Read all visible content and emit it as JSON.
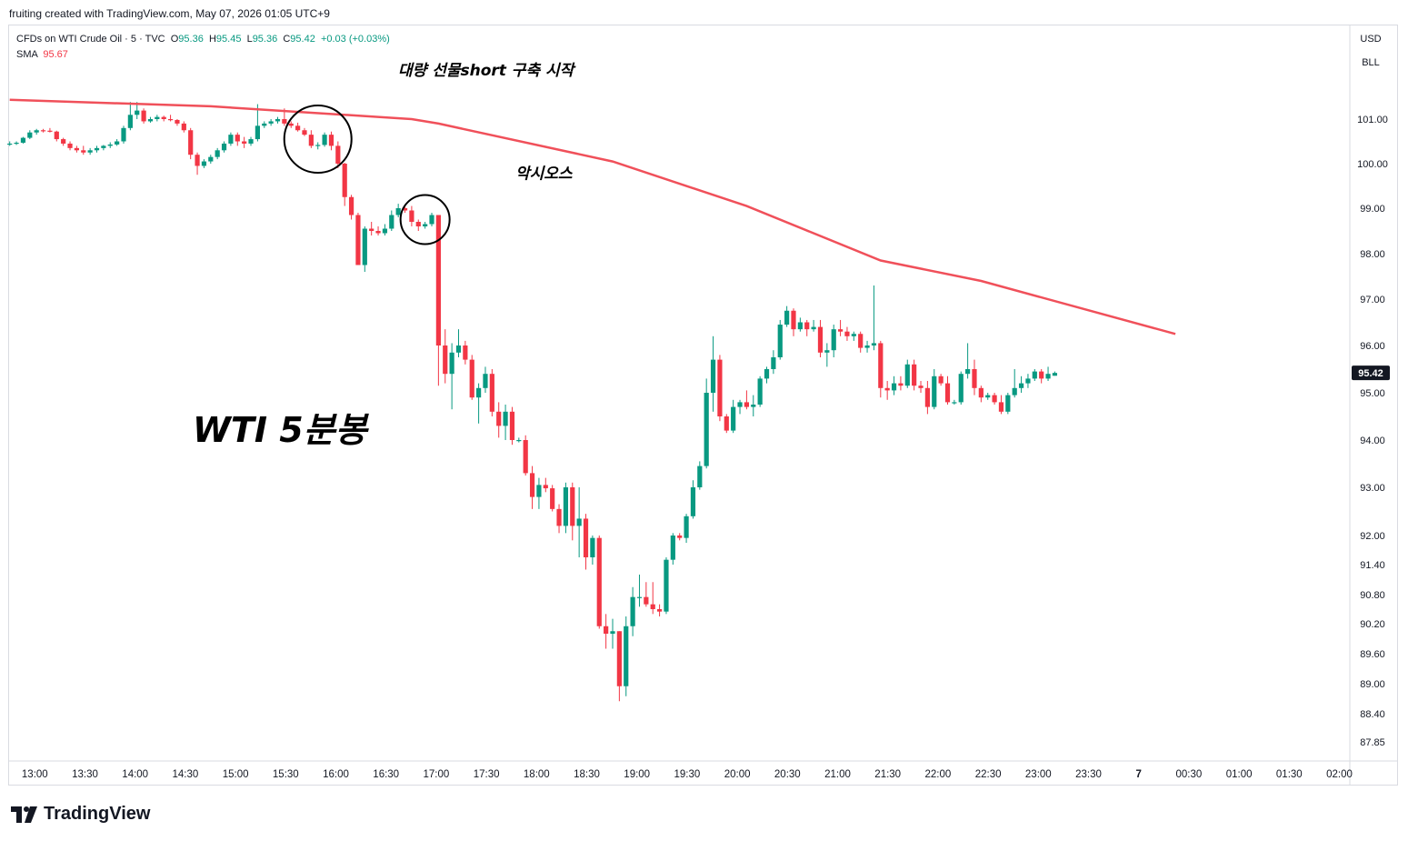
{
  "header": {
    "credit": "fruiting created with TradingView.com, May 07, 2026 01:05 UTC+9"
  },
  "legend": {
    "symbol": "CFDs on WTI Crude Oil · 5 · TVC",
    "o_label": "O",
    "o": "95.36",
    "h_label": "H",
    "h": "95.45",
    "l_label": "L",
    "l": "95.36",
    "c_label": "C",
    "c": "95.42",
    "change": "+0.03 (+0.03%)",
    "sma_label": "SMA",
    "sma": "95.67"
  },
  "currency": {
    "usd": "USD",
    "unit": "BLL"
  },
  "footer": {
    "logo_icon": "tradingview-logo-icon",
    "logo_text": "TradingView"
  },
  "colors": {
    "up": "#089981",
    "down": "#f23645",
    "sma": "#f0505a",
    "annotation": "#000000"
  },
  "chart_data": {
    "type": "candlestick",
    "y_axis_ticks": [
      101.0,
      100.0,
      99.0,
      98.0,
      97.0,
      96.0,
      95.0,
      94.0,
      93.0,
      92.0,
      91.4,
      90.8,
      90.2,
      89.6,
      89.0,
      88.4,
      87.85
    ],
    "y_axis_labels": [
      "101.00",
      "100.00",
      "99.00",
      "98.00",
      "97.00",
      "96.00",
      "95.00",
      "94.00",
      "93.00",
      "92.00",
      "91.40",
      "90.80",
      "90.20",
      "89.60",
      "89.00",
      "88.40",
      "87.85"
    ],
    "x_axis_labels": [
      "13:00",
      "13:30",
      "14:00",
      "14:30",
      "15:00",
      "15:30",
      "16:00",
      "16:30",
      "17:00",
      "17:30",
      "18:00",
      "18:30",
      "19:00",
      "19:30",
      "20:00",
      "20:30",
      "21:00",
      "21:30",
      "22:00",
      "22:30",
      "23:00",
      "23:30",
      "7",
      "00:30",
      "01:00",
      "01:30",
      "02:00"
    ],
    "last_price": "95.42",
    "candles": [
      [
        100.45,
        100.5,
        100.4,
        100.45
      ],
      [
        100.45,
        100.5,
        100.42,
        100.47
      ],
      [
        100.47,
        100.6,
        100.45,
        100.58
      ],
      [
        100.58,
        100.75,
        100.55,
        100.7
      ],
      [
        100.7,
        100.78,
        100.65,
        100.75
      ],
      [
        100.75,
        100.78,
        100.7,
        100.74
      ],
      [
        100.74,
        100.8,
        100.7,
        100.72
      ],
      [
        100.72,
        100.74,
        100.5,
        100.55
      ],
      [
        100.55,
        100.58,
        100.4,
        100.45
      ],
      [
        100.45,
        100.5,
        100.3,
        100.35
      ],
      [
        100.35,
        100.4,
        100.25,
        100.3
      ],
      [
        100.3,
        100.4,
        100.2,
        100.25
      ],
      [
        100.25,
        100.35,
        100.2,
        100.3
      ],
      [
        100.3,
        100.4,
        100.25,
        100.35
      ],
      [
        100.35,
        100.42,
        100.3,
        100.4
      ],
      [
        100.4,
        100.48,
        100.35,
        100.43
      ],
      [
        100.43,
        100.55,
        100.4,
        100.5
      ],
      [
        100.5,
        100.85,
        100.45,
        100.8
      ],
      [
        100.8,
        101.4,
        100.75,
        101.1
      ],
      [
        101.1,
        101.4,
        101.0,
        101.2
      ],
      [
        101.2,
        101.25,
        100.9,
        100.95
      ],
      [
        100.95,
        101.05,
        100.92,
        101.0
      ],
      [
        101.0,
        101.1,
        100.95,
        101.05
      ],
      [
        101.05,
        101.08,
        100.95,
        101.0
      ],
      [
        101.0,
        101.1,
        100.95,
        100.98
      ],
      [
        100.98,
        101.0,
        100.85,
        100.9
      ],
      [
        100.9,
        100.95,
        100.7,
        100.75
      ],
      [
        100.75,
        100.8,
        100.1,
        100.2
      ],
      [
        100.2,
        100.25,
        99.75,
        99.95
      ],
      [
        99.95,
        100.1,
        99.9,
        100.05
      ],
      [
        100.05,
        100.2,
        100.0,
        100.15
      ],
      [
        100.15,
        100.35,
        100.1,
        100.3
      ],
      [
        100.3,
        100.5,
        100.25,
        100.45
      ],
      [
        100.45,
        100.7,
        100.4,
        100.65
      ],
      [
        100.65,
        100.7,
        100.4,
        100.5
      ],
      [
        100.5,
        100.6,
        100.35,
        100.45
      ],
      [
        100.45,
        100.6,
        100.4,
        100.55
      ],
      [
        100.55,
        101.35,
        100.5,
        100.85
      ],
      [
        100.85,
        100.95,
        100.8,
        100.9
      ],
      [
        100.9,
        101.0,
        100.85,
        100.95
      ],
      [
        100.95,
        101.05,
        100.9,
        101.0
      ],
      [
        101.0,
        101.25,
        100.85,
        100.9
      ],
      [
        100.9,
        100.95,
        100.8,
        100.85
      ],
      [
        100.85,
        100.92,
        100.72,
        100.75
      ],
      [
        100.75,
        100.8,
        100.62,
        100.65
      ],
      [
        100.65,
        100.75,
        100.35,
        100.4
      ],
      [
        100.4,
        100.48,
        100.32,
        100.42
      ],
      [
        100.42,
        100.7,
        100.38,
        100.65
      ],
      [
        100.65,
        100.72,
        100.3,
        100.4
      ],
      [
        100.4,
        100.5,
        99.9,
        100.0
      ],
      [
        100.0,
        100.02,
        99.05,
        99.25
      ],
      [
        99.25,
        99.3,
        98.75,
        98.85
      ],
      [
        98.85,
        98.9,
        97.75,
        97.75
      ],
      [
        97.75,
        98.6,
        97.6,
        98.55
      ],
      [
        98.55,
        98.7,
        98.4,
        98.5
      ],
      [
        98.5,
        98.6,
        98.4,
        98.45
      ],
      [
        98.45,
        98.65,
        98.4,
        98.55
      ],
      [
        98.55,
        98.95,
        98.5,
        98.85
      ],
      [
        98.85,
        99.1,
        98.8,
        99.0
      ],
      [
        99.0,
        99.05,
        98.9,
        98.95
      ],
      [
        98.95,
        99.05,
        98.6,
        98.7
      ],
      [
        98.7,
        98.75,
        98.5,
        98.6
      ],
      [
        98.6,
        98.7,
        98.55,
        98.65
      ],
      [
        98.65,
        98.9,
        98.6,
        98.85
      ],
      [
        98.85,
        98.85,
        95.15,
        96.0
      ],
      [
        96.0,
        96.35,
        95.2,
        95.4
      ],
      [
        95.4,
        96.05,
        94.65,
        95.85
      ],
      [
        95.85,
        96.35,
        95.75,
        96.0
      ],
      [
        96.0,
        96.1,
        95.6,
        95.7
      ],
      [
        95.7,
        95.8,
        94.85,
        94.9
      ],
      [
        94.9,
        95.2,
        94.35,
        95.1
      ],
      [
        95.1,
        95.55,
        95.0,
        95.4
      ],
      [
        95.4,
        95.5,
        94.5,
        94.6
      ],
      [
        94.6,
        94.8,
        94.05,
        94.3
      ],
      [
        94.3,
        94.75,
        94.0,
        94.6
      ],
      [
        94.6,
        94.7,
        93.9,
        94.0
      ],
      [
        94.0,
        94.05,
        93.95,
        94.0
      ],
      [
        94.0,
        94.1,
        93.25,
        93.3
      ],
      [
        93.3,
        93.45,
        92.55,
        92.8
      ],
      [
        92.8,
        93.2,
        92.55,
        93.05
      ],
      [
        93.05,
        93.2,
        92.9,
        92.98
      ],
      [
        92.98,
        93.05,
        92.5,
        92.55
      ],
      [
        92.55,
        92.65,
        92.05,
        92.2
      ],
      [
        92.2,
        93.1,
        92.05,
        93.0
      ],
      [
        93.0,
        93.1,
        91.9,
        92.2
      ],
      [
        92.2,
        93.0,
        91.55,
        92.35
      ],
      [
        92.35,
        92.45,
        91.3,
        91.55
      ],
      [
        91.55,
        92.0,
        91.4,
        91.95
      ],
      [
        91.95,
        92.0,
        90.1,
        90.15
      ],
      [
        90.15,
        90.4,
        89.7,
        90.0
      ],
      [
        90.0,
        90.3,
        89.7,
        90.05
      ],
      [
        90.05,
        90.05,
        88.65,
        88.95
      ],
      [
        88.95,
        90.35,
        88.75,
        90.15
      ],
      [
        90.15,
        90.95,
        89.95,
        90.75
      ],
      [
        90.75,
        91.2,
        90.55,
        90.75
      ],
      [
        90.75,
        91.05,
        90.55,
        90.6
      ],
      [
        90.6,
        91.05,
        90.4,
        90.5
      ],
      [
        90.5,
        90.6,
        90.35,
        90.45
      ],
      [
        90.45,
        91.55,
        90.4,
        91.5
      ],
      [
        91.5,
        92.05,
        91.4,
        92.0
      ],
      [
        92.0,
        92.05,
        91.9,
        91.95
      ],
      [
        91.95,
        92.45,
        91.85,
        92.4
      ],
      [
        92.4,
        93.15,
        92.35,
        93.0
      ],
      [
        93.0,
        93.55,
        92.95,
        93.45
      ],
      [
        93.45,
        95.3,
        93.4,
        95.0
      ],
      [
        95.0,
        96.2,
        94.6,
        95.7
      ],
      [
        95.7,
        95.8,
        94.4,
        94.5
      ],
      [
        94.5,
        94.55,
        94.15,
        94.2
      ],
      [
        94.2,
        94.85,
        94.15,
        94.7
      ],
      [
        94.7,
        94.85,
        94.55,
        94.8
      ],
      [
        94.8,
        95.05,
        94.65,
        94.7
      ],
      [
        94.7,
        94.95,
        94.5,
        94.75
      ],
      [
        94.75,
        95.35,
        94.7,
        95.3
      ],
      [
        95.3,
        95.55,
        95.2,
        95.5
      ],
      [
        95.5,
        95.9,
        95.4,
        95.75
      ],
      [
        95.75,
        96.55,
        95.7,
        96.45
      ],
      [
        96.45,
        96.85,
        96.4,
        96.75
      ],
      [
        96.75,
        96.8,
        96.2,
        96.35
      ],
      [
        96.35,
        96.6,
        96.3,
        96.5
      ],
      [
        96.5,
        96.55,
        96.2,
        96.35
      ],
      [
        96.35,
        96.55,
        96.3,
        96.4
      ],
      [
        96.4,
        96.55,
        95.75,
        95.85
      ],
      [
        95.85,
        96.05,
        95.55,
        95.9
      ],
      [
        95.9,
        96.45,
        95.75,
        96.35
      ],
      [
        96.35,
        96.55,
        96.2,
        96.3
      ],
      [
        96.3,
        96.4,
        96.1,
        96.2
      ],
      [
        96.2,
        96.3,
        96.1,
        96.25
      ],
      [
        96.25,
        96.3,
        95.85,
        95.95
      ],
      [
        95.95,
        96.1,
        95.85,
        96.0
      ],
      [
        96.0,
        97.3,
        95.9,
        96.05
      ],
      [
        96.05,
        96.1,
        94.9,
        95.1
      ],
      [
        95.1,
        95.25,
        94.85,
        95.05
      ],
      [
        95.05,
        95.35,
        94.95,
        95.2
      ],
      [
        95.2,
        95.35,
        95.05,
        95.15
      ],
      [
        95.15,
        95.7,
        95.1,
        95.6
      ],
      [
        95.6,
        95.7,
        95.05,
        95.15
      ],
      [
        95.15,
        95.25,
        95.0,
        95.1
      ],
      [
        95.1,
        95.25,
        94.55,
        94.7
      ],
      [
        94.7,
        95.5,
        94.65,
        95.35
      ],
      [
        95.35,
        95.4,
        95.15,
        95.2
      ],
      [
        95.2,
        95.35,
        94.75,
        94.8
      ],
      [
        94.8,
        94.85,
        94.75,
        94.8
      ],
      [
        94.8,
        95.45,
        94.75,
        95.4
      ],
      [
        95.4,
        96.05,
        95.3,
        95.5
      ],
      [
        95.5,
        95.7,
        94.95,
        95.1
      ],
      [
        95.1,
        95.15,
        94.8,
        94.9
      ],
      [
        94.9,
        95.0,
        94.85,
        94.95
      ],
      [
        94.95,
        95.0,
        94.75,
        94.8
      ],
      [
        94.8,
        94.95,
        94.55,
        94.6
      ],
      [
        94.6,
        95.0,
        94.55,
        94.95
      ],
      [
        94.95,
        95.5,
        94.9,
        95.1
      ],
      [
        95.1,
        95.35,
        95.0,
        95.2
      ],
      [
        95.2,
        95.4,
        95.1,
        95.3
      ],
      [
        95.3,
        95.5,
        95.25,
        95.45
      ],
      [
        95.45,
        95.5,
        95.2,
        95.3
      ],
      [
        95.3,
        95.55,
        95.25,
        95.4
      ],
      [
        95.36,
        95.45,
        95.36,
        95.42
      ]
    ],
    "sma_points": [
      [
        0,
        101.45
      ],
      [
        30,
        101.3
      ],
      [
        60,
        101.0
      ],
      [
        64,
        100.9
      ],
      [
        90,
        100.05
      ],
      [
        110,
        99.05
      ],
      [
        130,
        97.85
      ],
      [
        145,
        97.4
      ],
      [
        160,
        96.8
      ],
      [
        174,
        96.25
      ]
    ],
    "annotations": [
      {
        "text": "대량 선물short 구축 시작",
        "candle": 46,
        "price": 100.55
      },
      {
        "text": "악시오스",
        "candle": 62,
        "price": 98.75
      }
    ],
    "watermark_text": "WTI 5분봉"
  }
}
